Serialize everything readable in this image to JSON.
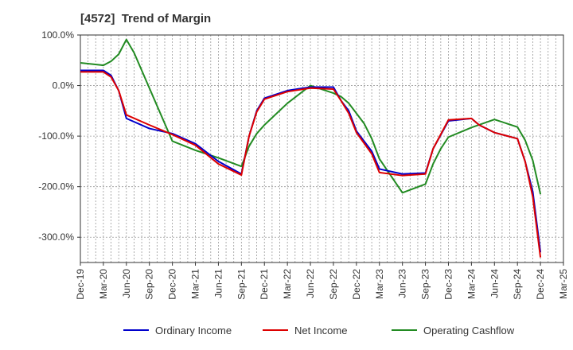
{
  "chart_data": {
    "type": "line",
    "title": "[4572]  Trend of Margin",
    "xlabel": "",
    "ylabel": "",
    "ylim": [
      -350,
      100
    ],
    "grid": true,
    "legend_placement": "bottom",
    "x_tick_labels": [
      "Dec-19",
      "Mar-20",
      "Jun-20",
      "Sep-20",
      "Dec-20",
      "Mar-21",
      "Jun-21",
      "Sep-21",
      "Dec-21",
      "Mar-22",
      "Jun-22",
      "Sep-22",
      "Dec-22",
      "Mar-23",
      "Jun-23",
      "Sep-23",
      "Dec-23",
      "Mar-24",
      "Jun-24",
      "Sep-24",
      "Dec-24",
      "Mar-25"
    ],
    "y_tick_values": [
      100,
      0,
      -100,
      -200,
      -300
    ],
    "y_tick_labels": [
      "100.0%",
      "0.0%",
      "-100.0%",
      "-200.0%",
      "-300.0%"
    ],
    "x": [
      "Dec-19",
      "Jan-20",
      "Feb-20",
      "Mar-20",
      "Apr-20",
      "May-20",
      "Jun-20",
      "Jul-20",
      "Aug-20",
      "Sep-20",
      "Oct-20",
      "Nov-20",
      "Dec-20",
      "Jan-21",
      "Feb-21",
      "Mar-21",
      "Apr-21",
      "May-21",
      "Jun-21",
      "Jul-21",
      "Aug-21",
      "Sep-21",
      "Oct-21",
      "Nov-21",
      "Dec-21",
      "Jan-22",
      "Feb-22",
      "Mar-22",
      "Apr-22",
      "May-22",
      "Jun-22",
      "Jul-22",
      "Aug-22",
      "Sep-22",
      "Oct-22",
      "Nov-22",
      "Dec-22",
      "Jan-23",
      "Feb-23",
      "Mar-23",
      "Apr-23",
      "May-23",
      "Jun-23",
      "Jul-23",
      "Aug-23",
      "Sep-23",
      "Oct-23",
      "Nov-23",
      "Dec-23",
      "Jan-24",
      "Feb-24",
      "Mar-24",
      "Apr-24",
      "May-24",
      "Jun-24",
      "Jul-24",
      "Aug-24",
      "Sep-24",
      "Oct-24",
      "Nov-24",
      "Dec-24"
    ],
    "series": [
      {
        "name": "Ordinary Income",
        "color": "#0000cc",
        "points": [
          [
            "Dec-19",
            30
          ],
          [
            "Mar-20",
            30
          ],
          [
            "Apr-20",
            20
          ],
          [
            "May-20",
            -10
          ],
          [
            "Jun-20",
            -65
          ],
          [
            "Sep-20",
            -85
          ],
          [
            "Dec-20",
            -95
          ],
          [
            "Mar-21",
            -115
          ],
          [
            "Jun-21",
            -150
          ],
          [
            "Sep-21",
            -175
          ],
          [
            "Oct-21",
            -100
          ],
          [
            "Nov-21",
            -50
          ],
          [
            "Dec-21",
            -25
          ],
          [
            "Mar-22",
            -10
          ],
          [
            "Jun-22",
            -3
          ],
          [
            "Sep-22",
            -3
          ],
          [
            "Oct-22",
            -30
          ],
          [
            "Nov-22",
            -50
          ],
          [
            "Dec-22",
            -90
          ],
          [
            "Feb-23",
            -130
          ],
          [
            "Mar-23",
            -165
          ],
          [
            "Jun-23",
            -175
          ],
          [
            "Sep-23",
            -173
          ],
          [
            "Oct-23",
            -125
          ],
          [
            "Dec-23",
            -70
          ],
          [
            "Mar-24",
            -65
          ],
          [
            "Apr-24",
            -78
          ],
          [
            "Jun-24",
            -93
          ],
          [
            "Sep-24",
            -105
          ],
          [
            "Oct-24",
            -150
          ],
          [
            "Nov-24",
            -210
          ],
          [
            "Dec-24",
            -330
          ]
        ]
      },
      {
        "name": "Net Income",
        "color": "#dd0000",
        "points": [
          [
            "Dec-19",
            27
          ],
          [
            "Mar-20",
            27
          ],
          [
            "Apr-20",
            17
          ],
          [
            "May-20",
            -10
          ],
          [
            "Jun-20",
            -58
          ],
          [
            "Sep-20",
            -78
          ],
          [
            "Dec-20",
            -97
          ],
          [
            "Mar-21",
            -118
          ],
          [
            "Jun-21",
            -155
          ],
          [
            "Sep-21",
            -177
          ],
          [
            "Oct-21",
            -100
          ],
          [
            "Nov-21",
            -52
          ],
          [
            "Dec-21",
            -27
          ],
          [
            "Mar-22",
            -12
          ],
          [
            "Jun-22",
            -5
          ],
          [
            "Sep-22",
            -7
          ],
          [
            "Oct-22",
            -30
          ],
          [
            "Nov-22",
            -55
          ],
          [
            "Dec-22",
            -93
          ],
          [
            "Feb-23",
            -135
          ],
          [
            "Mar-23",
            -172
          ],
          [
            "Jun-23",
            -178
          ],
          [
            "Sep-23",
            -175
          ],
          [
            "Oct-23",
            -125
          ],
          [
            "Dec-23",
            -68
          ],
          [
            "Mar-24",
            -65
          ],
          [
            "Apr-24",
            -78
          ],
          [
            "Jun-24",
            -93
          ],
          [
            "Sep-24",
            -105
          ],
          [
            "Oct-24",
            -150
          ],
          [
            "Nov-24",
            -220
          ],
          [
            "Dec-24",
            -340
          ]
        ]
      },
      {
        "name": "Operating Cashflow",
        "color": "#228b22",
        "points": [
          [
            "Dec-19",
            45
          ],
          [
            "Mar-20",
            40
          ],
          [
            "Apr-20",
            48
          ],
          [
            "May-20",
            62
          ],
          [
            "Jun-20",
            91
          ],
          [
            "Jul-20",
            65
          ],
          [
            "Aug-20",
            30
          ],
          [
            "Sep-20",
            -5
          ],
          [
            "Dec-20",
            -110
          ],
          [
            "Mar-21",
            -128
          ],
          [
            "Jun-21",
            -143
          ],
          [
            "Sep-21",
            -160
          ],
          [
            "Oct-21",
            -120
          ],
          [
            "Nov-21",
            -95
          ],
          [
            "Dec-21",
            -78
          ],
          [
            "Mar-22",
            -35
          ],
          [
            "Jun-22",
            0
          ],
          [
            "Sep-22",
            -15
          ],
          [
            "Oct-22",
            -22
          ],
          [
            "Nov-22",
            -35
          ],
          [
            "Dec-22",
            -55
          ],
          [
            "Jan-23",
            -75
          ],
          [
            "Feb-23",
            -105
          ],
          [
            "Mar-23",
            -145
          ],
          [
            "Jun-23",
            -212
          ],
          [
            "Sep-23",
            -195
          ],
          [
            "Oct-23",
            -155
          ],
          [
            "Nov-23",
            -125
          ],
          [
            "Dec-23",
            -102
          ],
          [
            "Mar-24",
            -83
          ],
          [
            "Jun-24",
            -67
          ],
          [
            "Sep-24",
            -82
          ],
          [
            "Oct-24",
            -108
          ],
          [
            "Nov-24",
            -148
          ],
          [
            "Dec-24",
            -215
          ]
        ]
      }
    ]
  }
}
